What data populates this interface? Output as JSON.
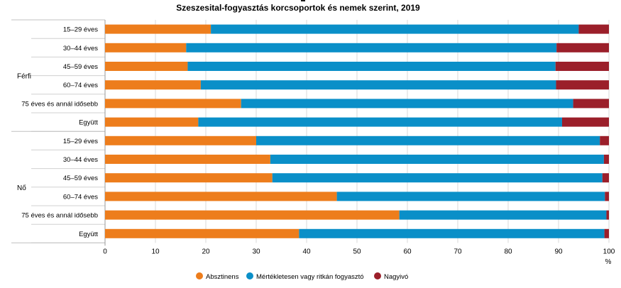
{
  "chart_data": {
    "type": "bar",
    "orientation": "horizontal",
    "stacked": true,
    "title": "Szeszesital-fogyasztás korcsoportok és nemek szerint, 2019",
    "xlabel": "",
    "unit_label": "%",
    "xlim": [
      0,
      100
    ],
    "x_ticks": [
      "0",
      "10",
      "20",
      "30",
      "40",
      "50",
      "60",
      "70",
      "80",
      "90",
      "100"
    ],
    "grid": true,
    "legend_position": "bottom",
    "groups": [
      {
        "name": "Férfi",
        "categories": [
          "15–29 éves",
          "30–44 éves",
          "45–59 éves",
          "60–74 éves",
          "75 éves és annál idősebb",
          "Együtt"
        ]
      },
      {
        "name": "Nő",
        "categories": [
          "15–29 éves",
          "30–44 éves",
          "45–59 éves",
          "60–74 éves",
          "75 éves és annál idősebb",
          "Együtt"
        ]
      }
    ],
    "series": [
      {
        "name": "Absztinens",
        "color": "#ed7d1c",
        "values": [
          21.0,
          16.1,
          16.4,
          19.0,
          27.0,
          18.5,
          30.0,
          32.8,
          33.2,
          46.0,
          58.4,
          38.5
        ]
      },
      {
        "name": "Mértékletesen vagy ritkán fogyasztó",
        "color": "#0a8fc8",
        "values": [
          73.0,
          73.5,
          73.0,
          70.5,
          65.9,
          72.2,
          68.2,
          66.2,
          65.5,
          53.2,
          41.1,
          60.6
        ]
      },
      {
        "name": "Nagyivó",
        "color": "#9b1f2a",
        "values": [
          6.0,
          10.4,
          10.6,
          10.5,
          7.1,
          9.3,
          1.8,
          1.0,
          1.3,
          0.8,
          0.5,
          0.9
        ]
      }
    ]
  }
}
